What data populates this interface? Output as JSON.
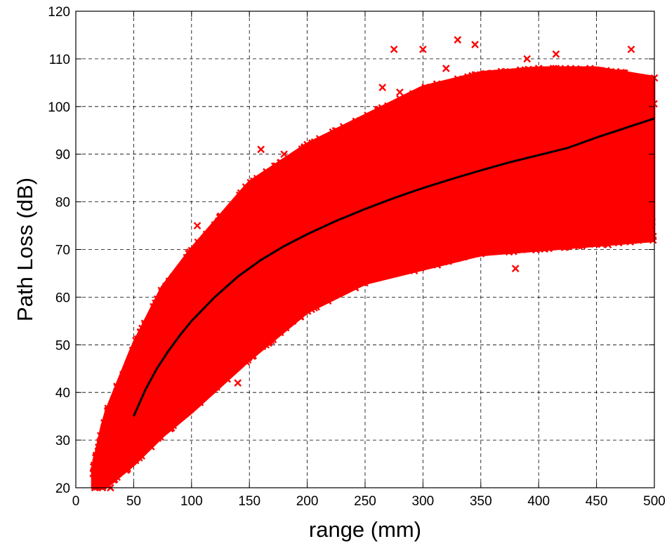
{
  "chart_data": {
    "type": "scatter",
    "title": "",
    "xlabel": "range (mm)",
    "ylabel": "Path Loss (dB)",
    "xlim": [
      0,
      500
    ],
    "ylim": [
      20,
      120
    ],
    "xticks": [
      0,
      50,
      100,
      150,
      200,
      250,
      300,
      350,
      400,
      450,
      500
    ],
    "yticks": [
      20,
      30,
      40,
      50,
      60,
      70,
      80,
      90,
      100,
      110,
      120
    ],
    "grid": true,
    "legend": "none",
    "colors": {
      "scatter": "#ff0000",
      "fit": "#000000"
    },
    "series": [
      {
        "kind": "scatter",
        "marker": "x",
        "color": "#ff0000",
        "description_points": [
          [
            15,
            23
          ],
          [
            20,
            27
          ],
          [
            25,
            21
          ],
          [
            30,
            20
          ],
          [
            32,
            34
          ],
          [
            40,
            40
          ],
          [
            50,
            45
          ],
          [
            50,
            30
          ],
          [
            60,
            48
          ],
          [
            70,
            52
          ],
          [
            75,
            60
          ],
          [
            90,
            62
          ],
          [
            100,
            65
          ],
          [
            105,
            75
          ],
          [
            110,
            72
          ],
          [
            120,
            70
          ],
          [
            140,
            42
          ],
          [
            150,
            83
          ],
          [
            160,
            91
          ],
          [
            180,
            90
          ],
          [
            200,
            92
          ],
          [
            215,
            60
          ],
          [
            250,
            97
          ],
          [
            265,
            104
          ],
          [
            275,
            112
          ],
          [
            280,
            103
          ],
          [
            300,
            112
          ],
          [
            320,
            108
          ],
          [
            330,
            114
          ],
          [
            345,
            113
          ],
          [
            360,
            107
          ],
          [
            365,
            70
          ],
          [
            380,
            66
          ],
          [
            390,
            110
          ],
          [
            400,
            108
          ],
          [
            415,
            111
          ],
          [
            430,
            73
          ],
          [
            450,
            107
          ],
          [
            460,
            71
          ],
          [
            480,
            112
          ],
          [
            490,
            73
          ],
          [
            500,
            106
          ]
        ],
        "envelope": {
          "x": [
            15,
            25,
            50,
            75,
            100,
            150,
            200,
            250,
            300,
            350,
            400,
            450,
            500
          ],
          "lower": [
            20,
            20,
            25,
            31,
            36,
            47,
            57,
            63,
            66,
            69,
            70,
            71,
            72
          ],
          "upper": [
            24,
            35,
            50,
            62,
            70,
            84,
            92,
            98,
            104,
            107,
            108,
            108,
            106
          ]
        }
      },
      {
        "kind": "line",
        "color": "#000000",
        "x": [
          50,
          60,
          70,
          80,
          90,
          100,
          120,
          140,
          160,
          180,
          200,
          225,
          250,
          275,
          300,
          325,
          350,
          375,
          400,
          425,
          450,
          475,
          500
        ],
        "y": [
          35,
          40.5,
          45,
          48.7,
          52,
          55,
          60,
          64.3,
          67.8,
          70.7,
          73.2,
          76,
          78.5,
          80.8,
          82.9,
          84.8,
          86.6,
          88.3,
          89.8,
          91.3,
          93.5,
          95.5,
          97.5
        ]
      }
    ]
  }
}
